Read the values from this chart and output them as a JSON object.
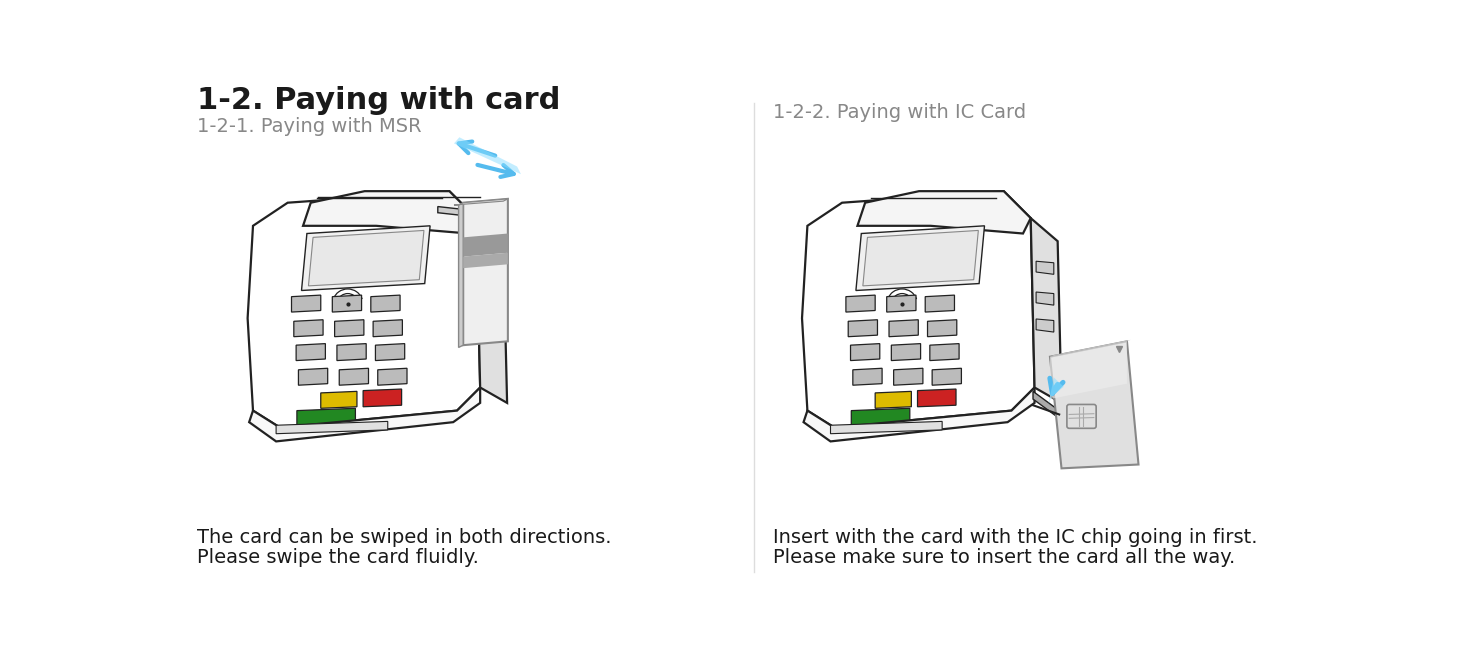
{
  "title": "1-2. Paying with card",
  "title_color": "#1a1a1a",
  "title_fontsize": 22,
  "subtitle_left": "1-2-1. Paying with MSR",
  "subtitle_right": "1-2-2. Paying with IC Card",
  "subtitle_color": "#888888",
  "subtitle_fontsize": 14,
  "caption_left_line1": "The card can be swiped in both directions.",
  "caption_left_line2": "Please swipe the card fluidly.",
  "caption_right_line1": "Insert with the card with the IC chip going in first.",
  "caption_right_line2": "Please make sure to insert the card all the way.",
  "caption_color": "#1a1a1a",
  "caption_fontsize": 14,
  "bg_color": "#ffffff",
  "terminal_body_color": "#ffffff",
  "terminal_outline_color": "#222222",
  "terminal_side_color": "#e0e0e0",
  "screen_color": "#f0f0f0",
  "screen_inner_color": "#e8e8e8",
  "key_gray": "#bbbbbb",
  "key_red": "#cc2222",
  "key_yellow": "#ddbb00",
  "key_green": "#228822",
  "card_face_color": "#e8e8e8",
  "card_side_color": "#bbbbbb",
  "card_stripe_color": "#999999",
  "arrow_color1": "#55bbee",
  "arrow_color2": "#88ddff",
  "divider_color": "#dddddd"
}
